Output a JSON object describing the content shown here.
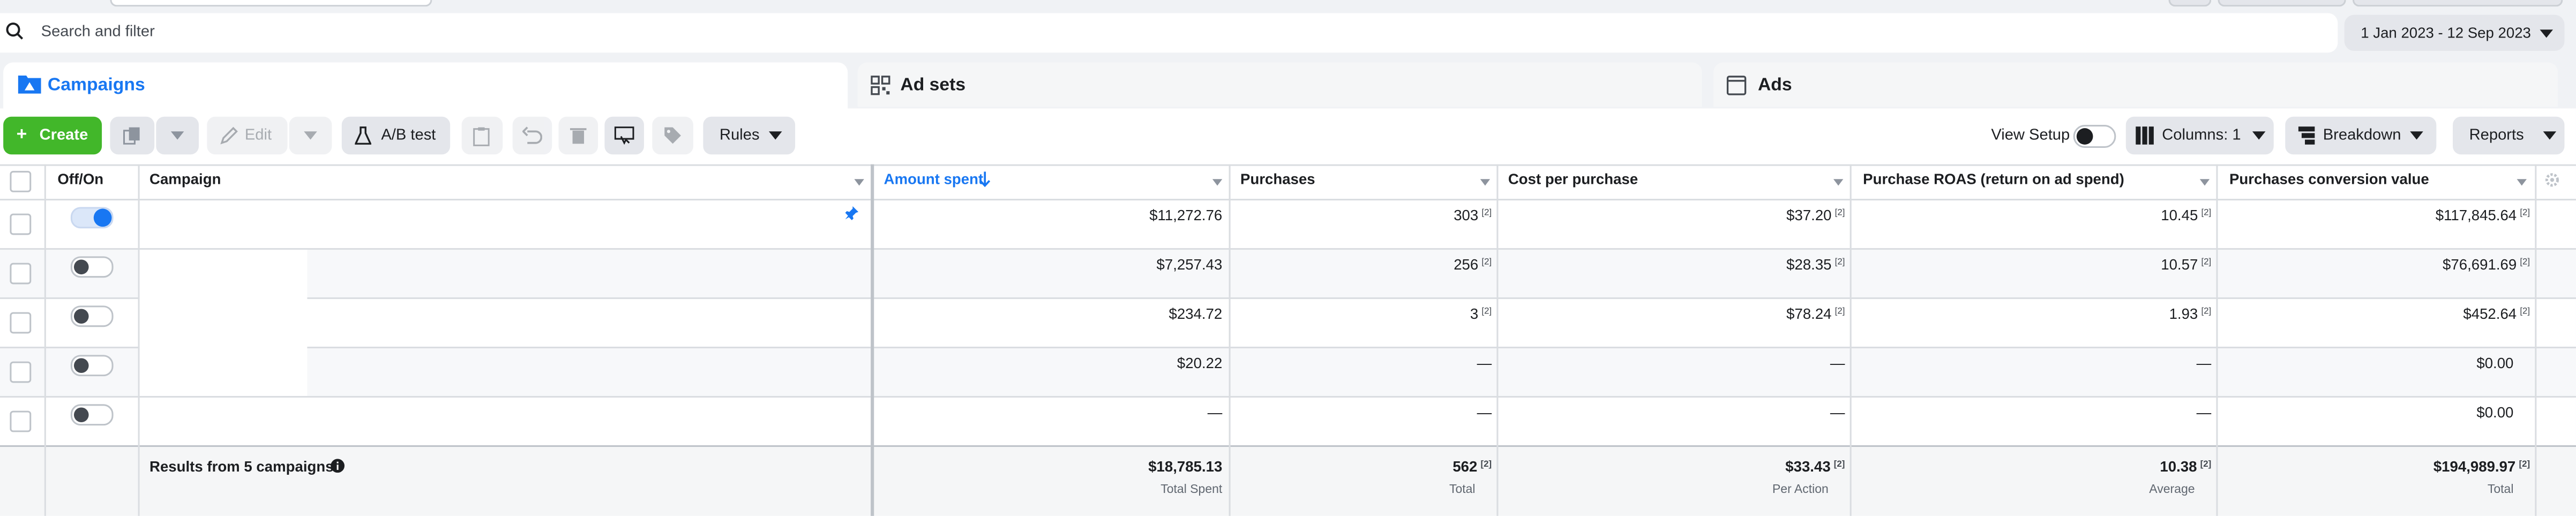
{
  "search": {
    "placeholder": "Search and filter"
  },
  "date_range": {
    "label": "1 Jan 2023 - 12 Sep 2023"
  },
  "tabs": [
    {
      "label": "Campaigns",
      "icon": "campaigns-icon",
      "active": true
    },
    {
      "label": "Ad sets",
      "icon": "ad-sets-icon",
      "active": false
    },
    {
      "label": "Ads",
      "icon": "ads-icon",
      "active": false
    }
  ],
  "toolbar": {
    "create_label": "Create",
    "edit_label": "Edit",
    "ab_test_label": "A/B test",
    "rules_label": "Rules",
    "view_setup_label": "View Setup",
    "columns_label": "Columns: 1",
    "breakdown_label": "Breakdown",
    "reports_label": "Reports"
  },
  "table": {
    "headers": {
      "offon": "Off/On",
      "campaign": "Campaign",
      "amount_spent": "Amount spent",
      "purchases": "Purchases",
      "cost_per_purchase": "Cost per purchase",
      "roas": "Purchase ROAS (return on ad spend)",
      "conv_value": "Purchases conversion value"
    },
    "rows": [
      {
        "on": true,
        "amount": "$11,272.76",
        "purchases": "303",
        "purchases_sup": "[2]",
        "cpp": "$37.20",
        "cpp_sup": "[2]",
        "roas": "10.45",
        "roas_sup": "[2]",
        "value": "$117,845.64",
        "value_sup": "[2]"
      },
      {
        "on": false,
        "amount": "$7,257.43",
        "purchases": "256",
        "purchases_sup": "[2]",
        "cpp": "$28.35",
        "cpp_sup": "[2]",
        "roas": "10.57",
        "roas_sup": "[2]",
        "value": "$76,691.69",
        "value_sup": "[2]"
      },
      {
        "on": false,
        "amount": "$234.72",
        "purchases": "3",
        "purchases_sup": "[2]",
        "cpp": "$78.24",
        "cpp_sup": "[2]",
        "roas": "1.93",
        "roas_sup": "[2]",
        "value": "$452.64",
        "value_sup": "[2]"
      },
      {
        "on": false,
        "amount": "$20.22",
        "purchases": "—",
        "purchases_sup": "",
        "cpp": "—",
        "cpp_sup": "",
        "roas": "—",
        "roas_sup": "",
        "value": "$0.00",
        "value_sup": ""
      },
      {
        "on": false,
        "amount": "—",
        "purchases": "—",
        "purchases_sup": "",
        "cpp": "—",
        "cpp_sup": "",
        "roas": "—",
        "roas_sup": "",
        "value": "$0.00",
        "value_sup": ""
      }
    ],
    "footer": {
      "label": "Results from 5 campaigns",
      "amount": "$18,785.13",
      "amount_sub": "Total Spent",
      "purchases": "562",
      "purchases_sup": "[2]",
      "purchases_sub": "Total",
      "cpp": "$33.43",
      "cpp_sup": "[2]",
      "cpp_sub": "Per Action",
      "roas": "10.38",
      "roas_sup": "[2]",
      "roas_sub": "Average",
      "value": "$194,989.97",
      "value_sup": "[2]",
      "value_sub": "Total"
    }
  },
  "colors": {
    "accent": "#1877f2",
    "create": "#42b72a"
  }
}
